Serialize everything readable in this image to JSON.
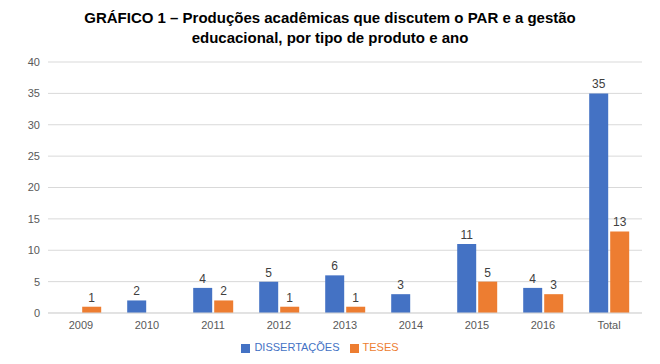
{
  "chart_data": {
    "type": "bar",
    "title": "GRÁFICO 1 – Produções acadêmicas que discutem o PAR e a gestão educacional, por tipo de produto e ano",
    "categories": [
      "2009",
      "2010",
      "2011",
      "2012",
      "2013",
      "2014",
      "2015",
      "2016",
      "Total"
    ],
    "series": [
      {
        "name": "DISSERTAÇÕES",
        "color": "#4472c4",
        "values": [
          0,
          2,
          4,
          5,
          6,
          3,
          11,
          4,
          35
        ]
      },
      {
        "name": "TESES",
        "color": "#ed7d31",
        "values": [
          1,
          0,
          2,
          1,
          1,
          0,
          5,
          3,
          13
        ]
      }
    ],
    "ylim": [
      0,
      40
    ],
    "yticks": [
      0,
      5,
      10,
      15,
      20,
      25,
      30,
      35,
      40
    ],
    "grid": true,
    "legend": "bottom",
    "data_labels": true
  }
}
